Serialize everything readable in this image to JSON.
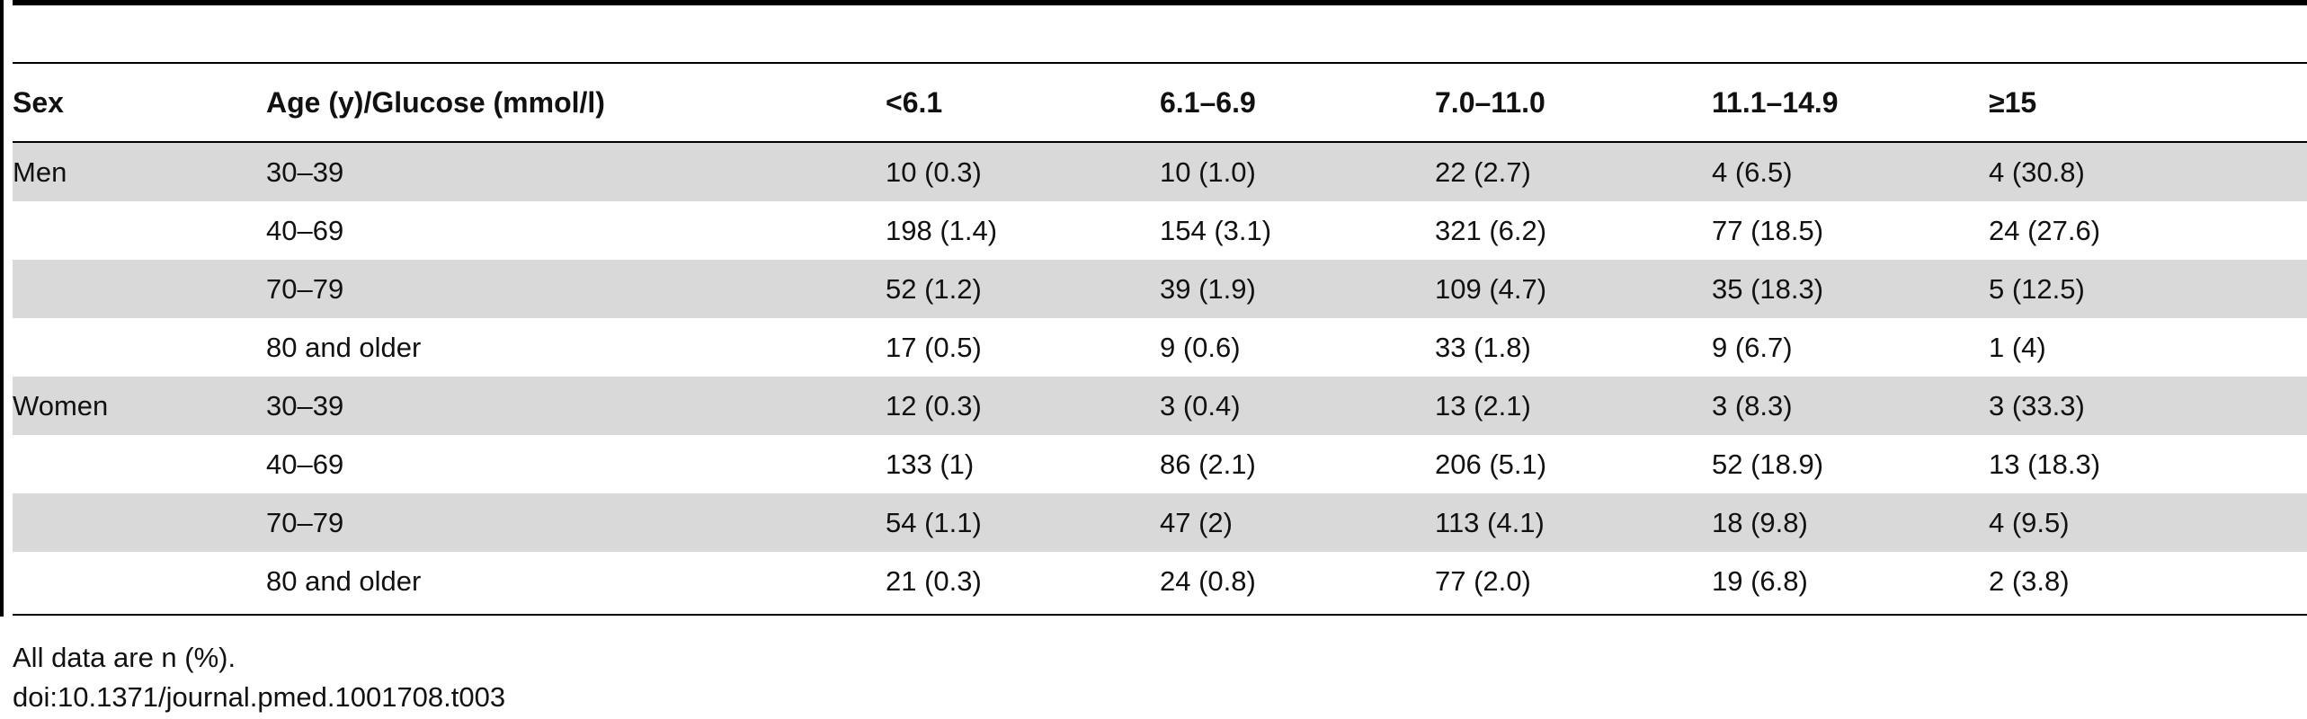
{
  "table": {
    "headers": [
      "Sex",
      "Age (y)/Glucose (mmol/l)",
      "<6.1",
      "6.1–6.9",
      "7.0–11.0",
      "11.1–14.9",
      "≥15"
    ],
    "rows": [
      [
        "Men",
        "30–39",
        "10 (0.3)",
        "10 (1.0)",
        "22 (2.7)",
        "4 (6.5)",
        "4 (30.8)"
      ],
      [
        "",
        "40–69",
        "198 (1.4)",
        "154 (3.1)",
        "321 (6.2)",
        "77 (18.5)",
        "24 (27.6)"
      ],
      [
        "",
        "70–79",
        "52 (1.2)",
        "39 (1.9)",
        "109 (4.7)",
        "35 (18.3)",
        "5 (12.5)"
      ],
      [
        "",
        "80 and older",
        "17 (0.5)",
        "9 (0.6)",
        "33 (1.8)",
        "9 (6.7)",
        "1 (4)"
      ],
      [
        "Women",
        "30–39",
        "12 (0.3)",
        "3 (0.4)",
        "13 (2.1)",
        "3 (8.3)",
        "3 (33.3)"
      ],
      [
        "",
        "40–69",
        "133 (1)",
        "86 (2.1)",
        "206 (5.1)",
        "52 (18.9)",
        "13 (18.3)"
      ],
      [
        "",
        "70–79",
        "54 (1.1)",
        "47 (2)",
        "113 (4.1)",
        "18 (9.8)",
        "4 (9.5)"
      ],
      [
        "",
        "80 and older",
        "21 (0.3)",
        "24 (0.8)",
        "77 (2.0)",
        "19 (6.8)",
        "2 (3.8)"
      ]
    ]
  },
  "footnote": "All data are n (%).",
  "doi": "doi:10.1371/journal.pmed.1001708.t003",
  "colors": {
    "shaded_row": "#d9d9d9",
    "rule": "#000000",
    "text": "#111111"
  }
}
